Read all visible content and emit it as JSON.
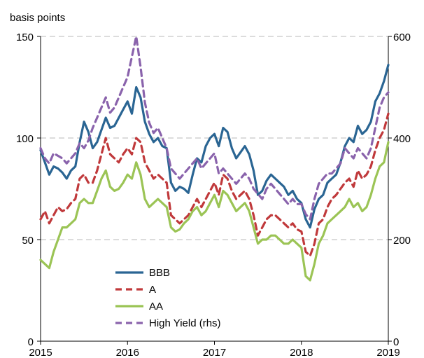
{
  "chart_data": {
    "type": "line",
    "title": "",
    "ylabel": "basis points",
    "ylabel_right": "",
    "xlabel": "",
    "x_ticks": [
      2015,
      2016,
      2017,
      2018,
      2019
    ],
    "y_ticks_left": [
      0,
      50,
      100,
      150
    ],
    "y_ticks_right": [
      0,
      200,
      400,
      600
    ],
    "xlim": [
      2015,
      2019
    ],
    "ylim": [
      0,
      150
    ],
    "ylim_right": [
      0,
      600
    ],
    "grid": "horizontal dashed",
    "legend_position": "bottom-left",
    "series": [
      {
        "name": "BBB",
        "axis": "left",
        "color": "#2a6593",
        "dash": "solid",
        "x": [
          2015.0,
          2015.05,
          2015.1,
          2015.15,
          2015.2,
          2015.25,
          2015.3,
          2015.35,
          2015.4,
          2015.45,
          2015.5,
          2015.55,
          2015.6,
          2015.65,
          2015.7,
          2015.75,
          2015.8,
          2015.85,
          2015.9,
          2015.95,
          2016.0,
          2016.05,
          2016.1,
          2016.15,
          2016.2,
          2016.25,
          2016.3,
          2016.35,
          2016.4,
          2016.45,
          2016.5,
          2016.55,
          2016.6,
          2016.65,
          2016.7,
          2016.75,
          2016.8,
          2016.85,
          2016.9,
          2016.95,
          2017.0,
          2017.05,
          2017.1,
          2017.15,
          2017.2,
          2017.25,
          2017.3,
          2017.35,
          2017.4,
          2017.45,
          2017.5,
          2017.55,
          2017.6,
          2017.65,
          2017.7,
          2017.75,
          2017.8,
          2017.85,
          2017.9,
          2017.95,
          2018.0,
          2018.05,
          2018.1,
          2018.15,
          2018.2,
          2018.25,
          2018.3,
          2018.35,
          2018.4,
          2018.45,
          2018.5,
          2018.55,
          2018.6,
          2018.65,
          2018.7,
          2018.75,
          2018.8,
          2018.85,
          2018.9,
          2018.95,
          2019.0
        ],
        "y": [
          94,
          88,
          82,
          86,
          85,
          83,
          80,
          84,
          86,
          98,
          108,
          103,
          95,
          98,
          104,
          110,
          105,
          106,
          110,
          114,
          118,
          112,
          125,
          120,
          108,
          102,
          98,
          100,
          96,
          95,
          78,
          74,
          76,
          75,
          73,
          82,
          90,
          88,
          96,
          100,
          102,
          96,
          105,
          103,
          95,
          90,
          93,
          96,
          92,
          84,
          72,
          74,
          79,
          82,
          80,
          78,
          76,
          72,
          74,
          70,
          68,
          60,
          56,
          65,
          70,
          72,
          78,
          80,
          82,
          88,
          96,
          100,
          98,
          106,
          102,
          104,
          108,
          118,
          122,
          128,
          136
        ]
      },
      {
        "name": "A",
        "axis": "left",
        "color": "#c0393b",
        "dash": "dashed",
        "x": [
          2015.0,
          2015.05,
          2015.1,
          2015.15,
          2015.2,
          2015.25,
          2015.3,
          2015.35,
          2015.4,
          2015.45,
          2015.5,
          2015.55,
          2015.6,
          2015.65,
          2015.7,
          2015.75,
          2015.8,
          2015.85,
          2015.9,
          2015.95,
          2016.0,
          2016.05,
          2016.1,
          2016.15,
          2016.2,
          2016.25,
          2016.3,
          2016.35,
          2016.4,
          2016.45,
          2016.5,
          2016.55,
          2016.6,
          2016.65,
          2016.7,
          2016.75,
          2016.8,
          2016.85,
          2016.9,
          2016.95,
          2017.0,
          2017.05,
          2017.1,
          2017.15,
          2017.2,
          2017.25,
          2017.3,
          2017.35,
          2017.4,
          2017.45,
          2017.5,
          2017.55,
          2017.6,
          2017.65,
          2017.7,
          2017.75,
          2017.8,
          2017.85,
          2017.9,
          2017.95,
          2018.0,
          2018.05,
          2018.1,
          2018.15,
          2018.2,
          2018.25,
          2018.3,
          2018.35,
          2018.4,
          2018.45,
          2018.5,
          2018.55,
          2018.6,
          2018.65,
          2018.7,
          2018.75,
          2018.8,
          2018.85,
          2018.9,
          2018.95,
          2019.0
        ],
        "y": [
          60,
          64,
          58,
          62,
          66,
          64,
          65,
          68,
          70,
          80,
          82,
          78,
          78,
          84,
          92,
          100,
          92,
          90,
          88,
          92,
          95,
          92,
          100,
          98,
          88,
          84,
          80,
          82,
          80,
          78,
          62,
          60,
          58,
          60,
          62,
          66,
          70,
          66,
          70,
          74,
          78,
          72,
          82,
          80,
          74,
          70,
          72,
          74,
          70,
          62,
          52,
          56,
          60,
          62,
          62,
          60,
          58,
          56,
          58,
          55,
          54,
          44,
          42,
          48,
          58,
          60,
          66,
          70,
          72,
          75,
          78,
          80,
          76,
          84,
          80,
          82,
          86,
          94,
          100,
          104,
          112
        ]
      },
      {
        "name": "AA",
        "axis": "left",
        "color": "#9bc455",
        "dash": "solid",
        "x": [
          2015.0,
          2015.05,
          2015.1,
          2015.15,
          2015.2,
          2015.25,
          2015.3,
          2015.35,
          2015.4,
          2015.45,
          2015.5,
          2015.55,
          2015.6,
          2015.65,
          2015.7,
          2015.75,
          2015.8,
          2015.85,
          2015.9,
          2015.95,
          2016.0,
          2016.05,
          2016.1,
          2016.15,
          2016.2,
          2016.25,
          2016.3,
          2016.35,
          2016.4,
          2016.45,
          2016.5,
          2016.55,
          2016.6,
          2016.65,
          2016.7,
          2016.75,
          2016.8,
          2016.85,
          2016.9,
          2016.95,
          2017.0,
          2017.05,
          2017.1,
          2017.15,
          2017.2,
          2017.25,
          2017.3,
          2017.35,
          2017.4,
          2017.45,
          2017.5,
          2017.55,
          2017.6,
          2017.65,
          2017.7,
          2017.75,
          2017.8,
          2017.85,
          2017.9,
          2017.95,
          2018.0,
          2018.05,
          2018.1,
          2018.15,
          2018.2,
          2018.25,
          2018.3,
          2018.35,
          2018.4,
          2018.45,
          2018.5,
          2018.55,
          2018.6,
          2018.65,
          2018.7,
          2018.75,
          2018.8,
          2018.85,
          2018.9,
          2018.95,
          2019.0
        ],
        "y": [
          40,
          38,
          36,
          44,
          50,
          56,
          56,
          58,
          60,
          68,
          70,
          68,
          68,
          74,
          80,
          84,
          76,
          74,
          75,
          78,
          82,
          80,
          88,
          82,
          70,
          66,
          68,
          70,
          68,
          66,
          56,
          54,
          55,
          58,
          60,
          64,
          66,
          62,
          64,
          68,
          72,
          66,
          74,
          72,
          68,
          64,
          66,
          68,
          64,
          56,
          48,
          50,
          50,
          52,
          52,
          50,
          48,
          48,
          50,
          48,
          46,
          32,
          30,
          38,
          48,
          52,
          58,
          60,
          62,
          64,
          66,
          70,
          66,
          68,
          64,
          66,
          72,
          80,
          86,
          88,
          98
        ]
      },
      {
        "name": "High Yield (rhs)",
        "axis": "right",
        "color": "#8a63ac",
        "dash": "dashed",
        "x": [
          2015.0,
          2015.05,
          2015.1,
          2015.15,
          2015.2,
          2015.25,
          2015.3,
          2015.35,
          2015.4,
          2015.45,
          2015.5,
          2015.55,
          2015.6,
          2015.65,
          2015.7,
          2015.75,
          2015.8,
          2015.85,
          2015.9,
          2015.95,
          2016.0,
          2016.05,
          2016.1,
          2016.15,
          2016.2,
          2016.25,
          2016.3,
          2016.35,
          2016.4,
          2016.45,
          2016.5,
          2016.55,
          2016.6,
          2016.65,
          2016.7,
          2016.75,
          2016.8,
          2016.85,
          2016.9,
          2016.95,
          2017.0,
          2017.05,
          2017.1,
          2017.15,
          2017.2,
          2017.25,
          2017.3,
          2017.35,
          2017.4,
          2017.45,
          2017.5,
          2017.55,
          2017.6,
          2017.65,
          2017.7,
          2017.75,
          2017.8,
          2017.85,
          2017.9,
          2017.95,
          2018.0,
          2018.05,
          2018.1,
          2018.15,
          2018.2,
          2018.25,
          2018.3,
          2018.35,
          2018.4,
          2018.45,
          2018.5,
          2018.55,
          2018.6,
          2018.65,
          2018.7,
          2018.75,
          2018.8,
          2018.85,
          2018.9,
          2018.95,
          2019.0
        ],
        "y": [
          380,
          360,
          350,
          370,
          365,
          360,
          350,
          360,
          370,
          390,
          380,
          395,
          420,
          440,
          460,
          480,
          450,
          460,
          480,
          500,
          520,
          560,
          600,
          540,
          470,
          430,
          410,
          420,
          400,
          380,
          340,
          330,
          320,
          330,
          340,
          350,
          360,
          340,
          350,
          360,
          370,
          330,
          340,
          330,
          320,
          310,
          320,
          330,
          320,
          300,
          290,
          280,
          300,
          310,
          300,
          290,
          280,
          270,
          280,
          270,
          270,
          250,
          240,
          280,
          310,
          320,
          330,
          330,
          340,
          350,
          380,
          370,
          360,
          380,
          370,
          360,
          380,
          420,
          460,
          480,
          490
        ]
      }
    ]
  }
}
